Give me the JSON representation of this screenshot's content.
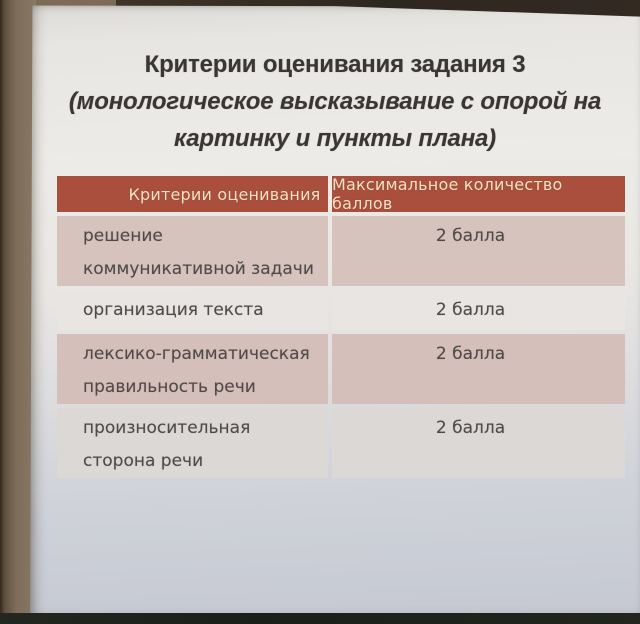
{
  "slide": {
    "title": "Критерии оценивания задания 3",
    "subtitle": {
      "line1": "(монологическое высказывание с опорой на",
      "line2": "картинку и пункты плана)"
    },
    "table": {
      "headers": [
        "Критерии оценивания",
        "Максимальное количество баллов"
      ],
      "rows": [
        {
          "criterion": "решение коммуникативной задачи",
          "max_score": "2 балла"
        },
        {
          "criterion": "организация текста",
          "max_score": "2 балла"
        },
        {
          "criterion": "лексико-грамматическая правильность речи",
          "max_score": "2 балла"
        },
        {
          "criterion": "произносительная сторона речи",
          "max_score": "2 балла"
        }
      ]
    }
  },
  "colors": {
    "table_header_bg": "#aa4f3d",
    "table_header_text": "#f3e3c5",
    "row_pink": "#d7c3be",
    "row_pink_alt": "#d5bfba",
    "row_light": "#e8e5e3",
    "row_light_dim": "#dbd8d6",
    "body_text": "#4f4a47",
    "title_text": "#3a3634",
    "wall": "#7d6d59",
    "bottom_strip": "#1b1f1a",
    "screen_top": "#edebe7",
    "screen_bottom": "#c6c9d2"
  }
}
